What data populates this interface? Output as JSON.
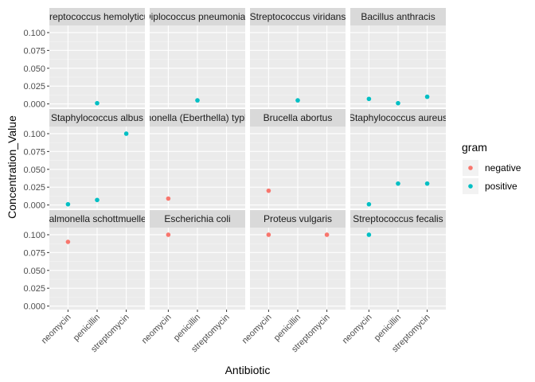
{
  "chart_data": {
    "type": "scatter",
    "facet_layout": "3x4",
    "xlabel": "Antibiotic",
    "ylabel": "Concentration_Value",
    "x_categories": [
      "neomycin",
      "penicillin",
      "streptomycin"
    ],
    "legend": {
      "title": "gram",
      "placement": "right",
      "entries": [
        {
          "label": "negative",
          "color": "#F8766D"
        },
        {
          "label": "positive",
          "color": "#00BFC4"
        }
      ]
    },
    "rows": [
      {
        "ylim": [
          0,
          0.11
        ],
        "yticks": [
          "0.000",
          "0.025",
          "0.050",
          "0.075",
          "0.100"
        ],
        "ytick_values": [
          0,
          0.025,
          0.05,
          0.075,
          0.1
        ]
      },
      {
        "ylim": [
          0,
          0.11
        ],
        "yticks": [
          "0.000",
          "0.025",
          "0.050",
          "0.075",
          "0.100"
        ],
        "ytick_values": [
          0,
          0.025,
          0.05,
          0.075,
          0.1
        ]
      },
      {
        "ylim": [
          0,
          0.11
        ],
        "yticks": [
          "0.000",
          "0.025",
          "0.050",
          "0.075",
          "0.100"
        ],
        "ytick_values": [
          0,
          0.025,
          0.05,
          0.075,
          0.1
        ]
      }
    ],
    "panels": [
      {
        "strip": "Streptococcus hemolyticus",
        "row": 0,
        "col": 0,
        "points": [
          {
            "x": "penicillin",
            "y": 0.001,
            "gram": "positive"
          }
        ]
      },
      {
        "strip": "Diplococcus pneumoniae",
        "row": 0,
        "col": 1,
        "points": [
          {
            "x": "penicillin",
            "y": 0.005,
            "gram": "positive"
          }
        ]
      },
      {
        "strip": "Streptococcus viridans",
        "row": 0,
        "col": 2,
        "points": [
          {
            "x": "penicillin",
            "y": 0.005,
            "gram": "positive"
          }
        ]
      },
      {
        "strip": "Bacillus anthracis",
        "row": 0,
        "col": 3,
        "points": [
          {
            "x": "neomycin",
            "y": 0.007,
            "gram": "positive"
          },
          {
            "x": "penicillin",
            "y": 0.001,
            "gram": "positive"
          },
          {
            "x": "streptomycin",
            "y": 0.01,
            "gram": "positive"
          }
        ]
      },
      {
        "strip": "Staphylococcus albus",
        "row": 1,
        "col": 0,
        "points": [
          {
            "x": "neomycin",
            "y": 0.001,
            "gram": "positive"
          },
          {
            "x": "penicillin",
            "y": 0.007,
            "gram": "positive"
          },
          {
            "x": "streptomycin",
            "y": 0.1,
            "gram": "positive"
          }
        ]
      },
      {
        "strip": "Salmonella (Eberthella) typhosa",
        "row": 1,
        "col": 1,
        "points": [
          {
            "x": "neomycin",
            "y": 0.009,
            "gram": "negative"
          }
        ]
      },
      {
        "strip": "Brucella abortus",
        "row": 1,
        "col": 2,
        "points": [
          {
            "x": "neomycin",
            "y": 0.02,
            "gram": "negative"
          }
        ]
      },
      {
        "strip": "Staphylococcus aureus",
        "row": 1,
        "col": 3,
        "points": [
          {
            "x": "neomycin",
            "y": 0.001,
            "gram": "positive"
          },
          {
            "x": "penicillin",
            "y": 0.03,
            "gram": "positive"
          },
          {
            "x": "streptomycin",
            "y": 0.03,
            "gram": "positive"
          }
        ]
      },
      {
        "strip": "Salmonella schottmuelleri",
        "row": 2,
        "col": 0,
        "points": [
          {
            "x": "neomycin",
            "y": 0.09,
            "gram": "negative"
          }
        ]
      },
      {
        "strip": "Escherichia coli",
        "row": 2,
        "col": 1,
        "points": [
          {
            "x": "neomycin",
            "y": 0.1,
            "gram": "negative"
          }
        ]
      },
      {
        "strip": "Proteus vulgaris",
        "row": 2,
        "col": 2,
        "points": [
          {
            "x": "neomycin",
            "y": 0.1,
            "gram": "negative"
          },
          {
            "x": "streptomycin",
            "y": 0.1,
            "gram": "negative"
          }
        ]
      },
      {
        "strip": "Streptococcus fecalis",
        "row": 2,
        "col": 3,
        "points": [
          {
            "x": "neomycin",
            "y": 0.1,
            "gram": "positive"
          }
        ]
      }
    ]
  }
}
